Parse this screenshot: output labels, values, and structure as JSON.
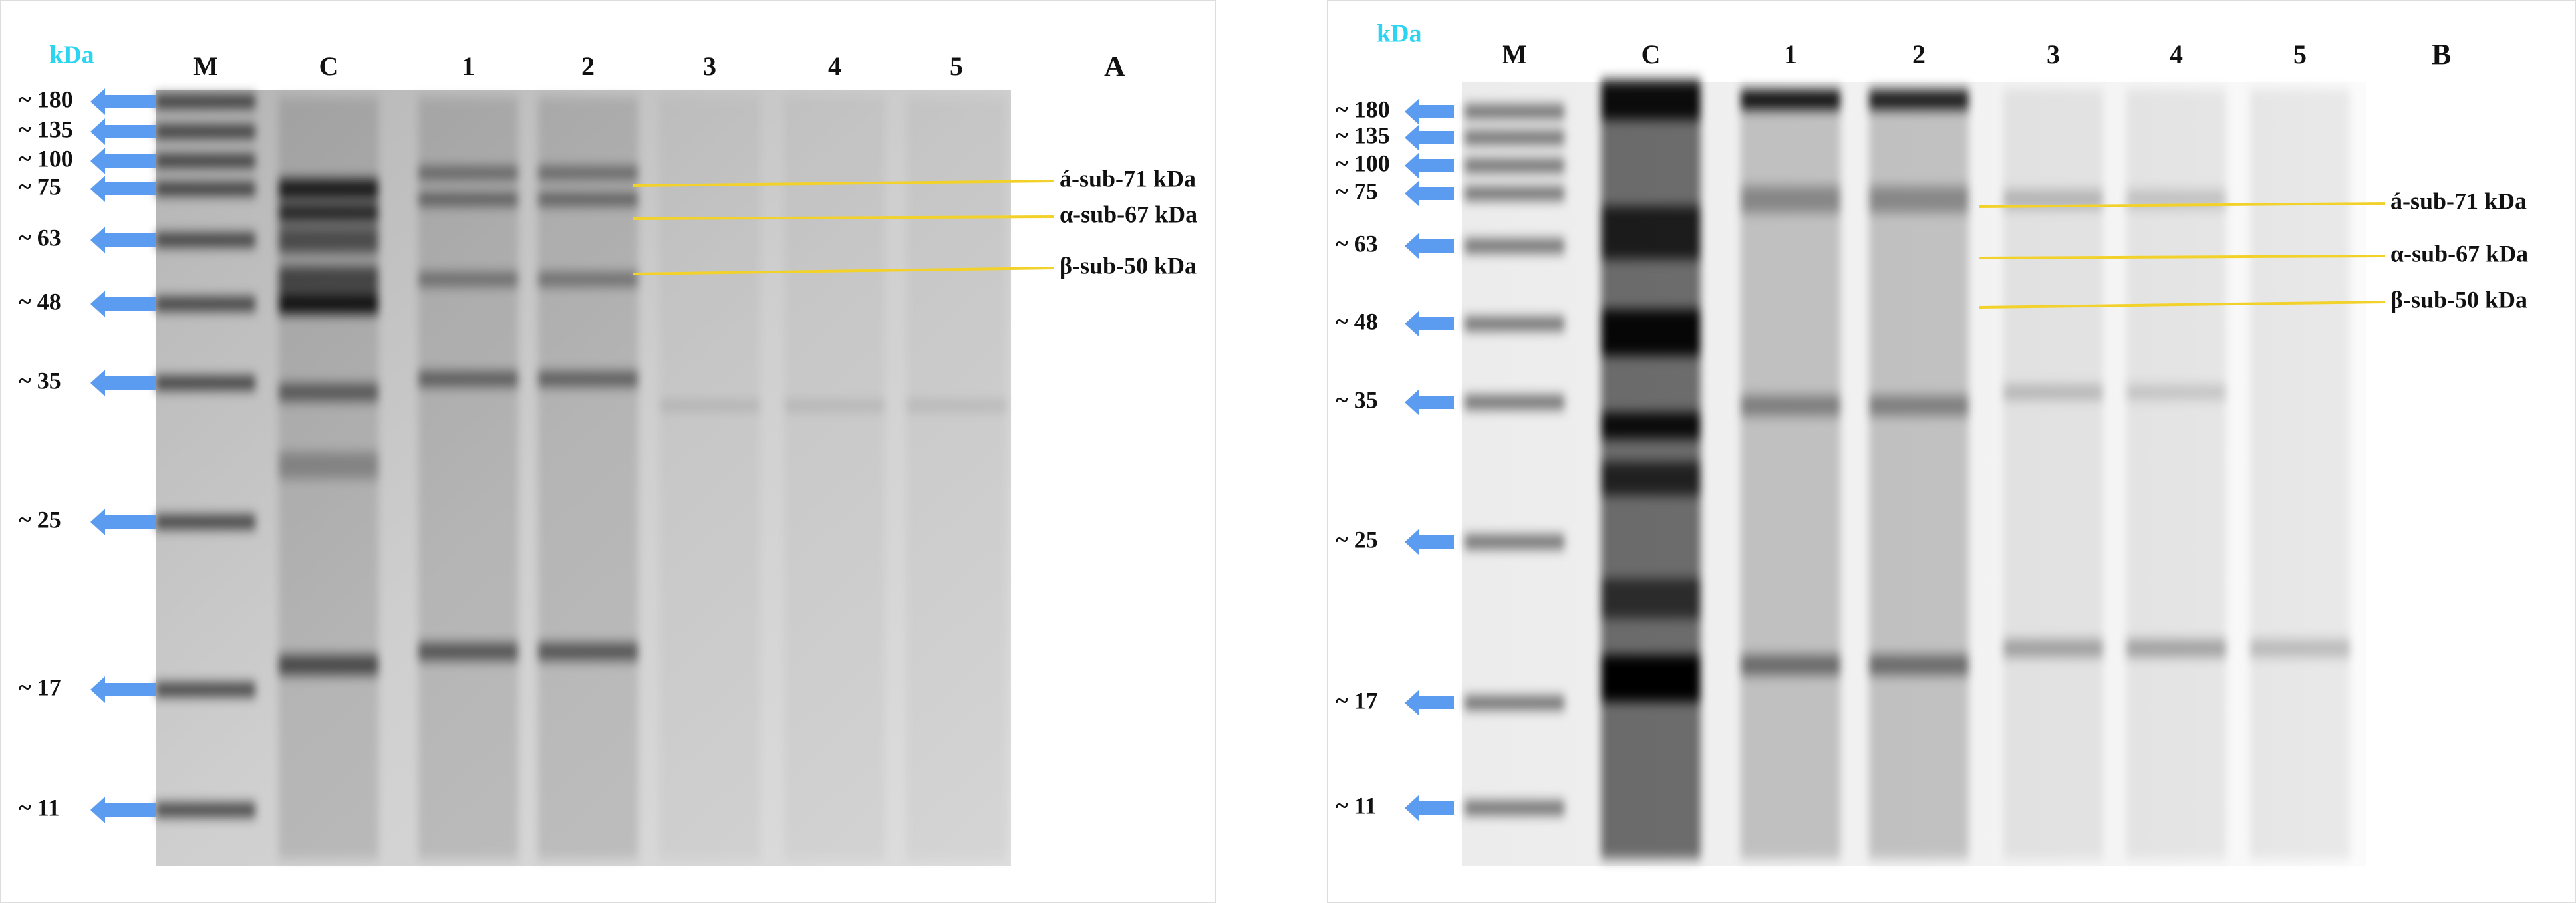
{
  "panels": [
    {
      "letter": "A",
      "kda": "kDa",
      "lanes": [
        "M",
        "C",
        "1",
        "2",
        "3",
        "4",
        "5"
      ],
      "markers": [
        "~ 180",
        "~ 135",
        "~ 100",
        "~ 75",
        "~ 63",
        "~ 48",
        "~ 35",
        "~ 25",
        "~ 17",
        "~ 11"
      ],
      "annotations": [
        "á-sub-71 kDa",
        "α-sub-67 kDa",
        "β-sub-50 kDa"
      ]
    },
    {
      "letter": "B",
      "kda": "kDa",
      "lanes": [
        "M",
        "C",
        "1",
        "2",
        "3",
        "4",
        "5"
      ],
      "markers": [
        "~ 180",
        "~ 135",
        "~ 100",
        "~ 75",
        "~ 63",
        "~ 48",
        "~ 35",
        "~ 25",
        "~ 17",
        "~ 11"
      ],
      "annotations": [
        "á-sub-71 kDa",
        "α-sub-67 kDa",
        "β-sub-50 kDa"
      ]
    }
  ]
}
